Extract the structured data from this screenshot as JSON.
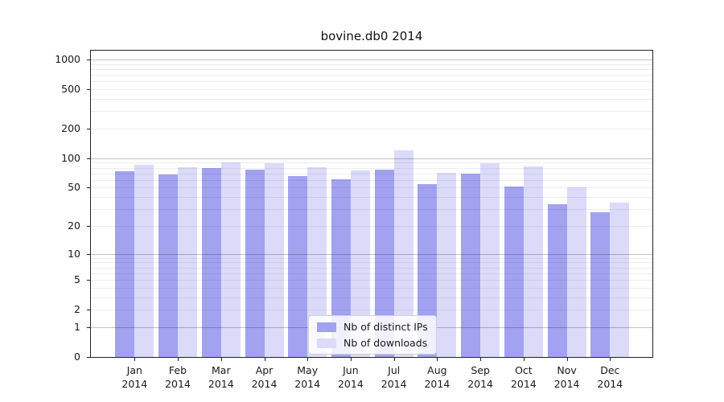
{
  "figure": {
    "title": "bovine.db0 2014",
    "background_color": "#ffffff"
  },
  "chart_data": {
    "type": "bar",
    "title": "bovine.db0 2014",
    "x": {
      "months": [
        "Jan",
        "Feb",
        "Mar",
        "Apr",
        "May",
        "Jun",
        "Jul",
        "Aug",
        "Sep",
        "Oct",
        "Nov",
        "Dec"
      ],
      "year": "2014"
    },
    "categories": [
      "Jan 2014",
      "Feb 2014",
      "Mar 2014",
      "Apr 2014",
      "May 2014",
      "Jun 2014",
      "Jul 2014",
      "Aug 2014",
      "Sep 2014",
      "Oct 2014",
      "Nov 2014",
      "Dec 2014"
    ],
    "series": [
      {
        "name": "Nb of distinct IPs",
        "color": "#a2a2f0",
        "values": [
          74,
          68,
          80,
          76,
          66,
          61,
          77,
          54,
          70,
          51,
          34,
          28
        ]
      },
      {
        "name": "Nb of downloads",
        "color": "#dbdbf9",
        "values": [
          85,
          81,
          91,
          89,
          81,
          75,
          120,
          71,
          89,
          82,
          50,
          35
        ]
      }
    ],
    "y_axis": {
      "tick_labels": [
        "0",
        "1",
        "2",
        "5",
        "10",
        "20",
        "50",
        "100",
        "200",
        "500",
        "1000"
      ],
      "ticks": [
        0,
        1,
        2,
        5,
        10,
        20,
        50,
        100,
        200,
        500,
        1000
      ],
      "scale": "log10(value+1)",
      "range": [
        0,
        1230
      ]
    },
    "grid": {
      "orientation": "horizontal",
      "major_lines": [
        1,
        10,
        100,
        1000
      ],
      "minor_lines": "2-9 of each decade"
    },
    "legend_position": "lower center"
  },
  "legend": {
    "items": [
      {
        "label": "Nb of distinct IPs",
        "color": "#a2a2f0"
      },
      {
        "label": "Nb of downloads",
        "color": "#dbdbf9"
      }
    ]
  }
}
